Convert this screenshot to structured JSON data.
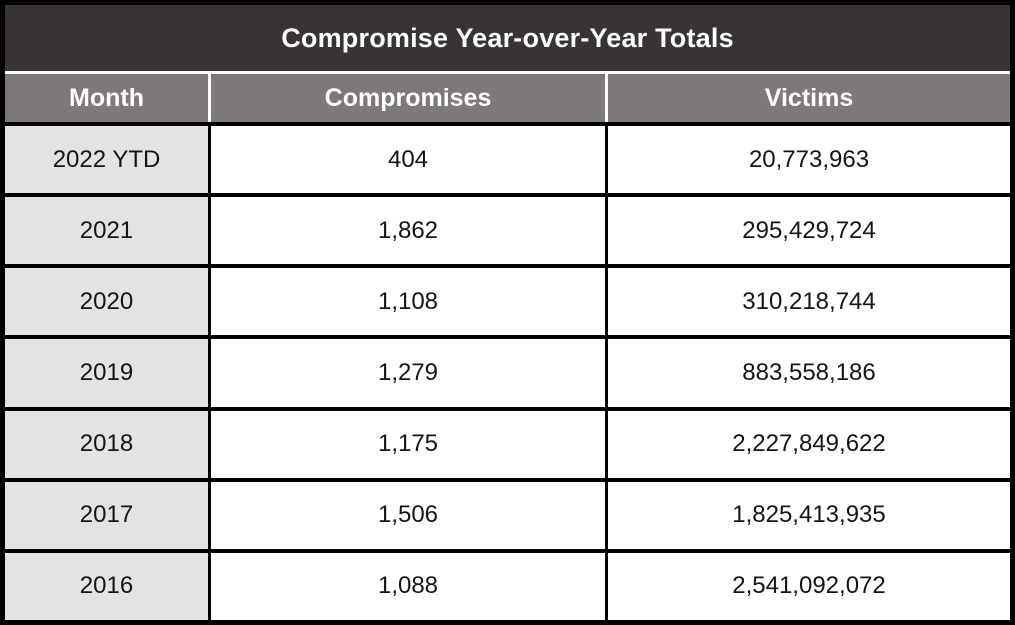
{
  "title": "Compromise Year-over-Year Totals",
  "columns": [
    "Month",
    "Compromises",
    "Victims"
  ],
  "rows": [
    {
      "month": "2022 YTD",
      "compromises": "404",
      "victims": "20,773,963"
    },
    {
      "month": "2021",
      "compromises": "1,862",
      "victims": "295,429,724"
    },
    {
      "month": "2020",
      "compromises": "1,108",
      "victims": "310,218,744"
    },
    {
      "month": "2019",
      "compromises": "1,279",
      "victims": "883,558,186"
    },
    {
      "month": "2018",
      "compromises": "1,175",
      "victims": "2,227,849,622"
    },
    {
      "month": "2017",
      "compromises": "1,506",
      "victims": "1,825,413,935"
    },
    {
      "month": "2016",
      "compromises": "1,088",
      "victims": "2,541,092,072"
    }
  ],
  "colors": {
    "title_bg": "#383434",
    "header_bg": "#7d7979",
    "label_col_bg": "#e4e3e3",
    "grid_border": "#000000",
    "header_text": "#ffffff",
    "body_text": "#161414"
  },
  "chart_data": {
    "type": "table",
    "title": "Compromise Year-over-Year Totals",
    "columns": [
      "Month",
      "Compromises",
      "Victims"
    ],
    "rows": [
      [
        "2022 YTD",
        404,
        20773963
      ],
      [
        "2021",
        1862,
        295429724
      ],
      [
        "2020",
        1108,
        310218744
      ],
      [
        "2019",
        1279,
        883558186
      ],
      [
        "2018",
        1175,
        2227849622
      ],
      [
        "2017",
        1506,
        1825413935
      ],
      [
        "2016",
        1088,
        2541092072
      ]
    ],
    "layout_hints": {
      "title_position": "top-banner",
      "header_row": true,
      "first_column_shaded": true,
      "gridlines": "thick-black"
    }
  }
}
